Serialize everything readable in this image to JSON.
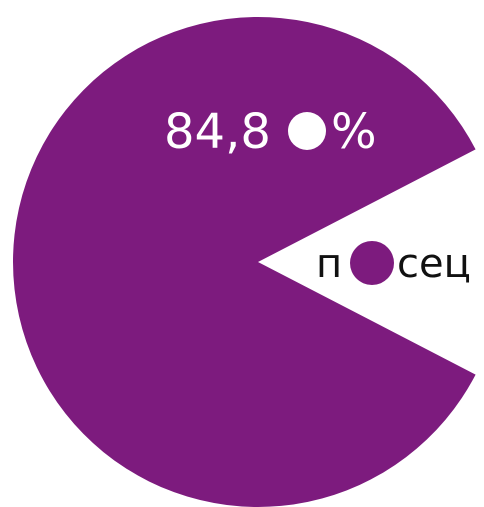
{
  "chart_data": {
    "type": "pie",
    "slices": [
      {
        "value": 84.8,
        "color": "#7d1b7e"
      },
      {
        "value": 15.2,
        "color": "#ffffff"
      }
    ],
    "value_label": {
      "number": "84,8",
      "suffix": "%",
      "dot_color": "#ffffff"
    },
    "word_label": {
      "prefix": "п",
      "suffix": "сец",
      "dot_color": "#7d1b7e"
    }
  },
  "colors": {
    "accent": "#7d1b7e",
    "background": "#ffffff"
  }
}
